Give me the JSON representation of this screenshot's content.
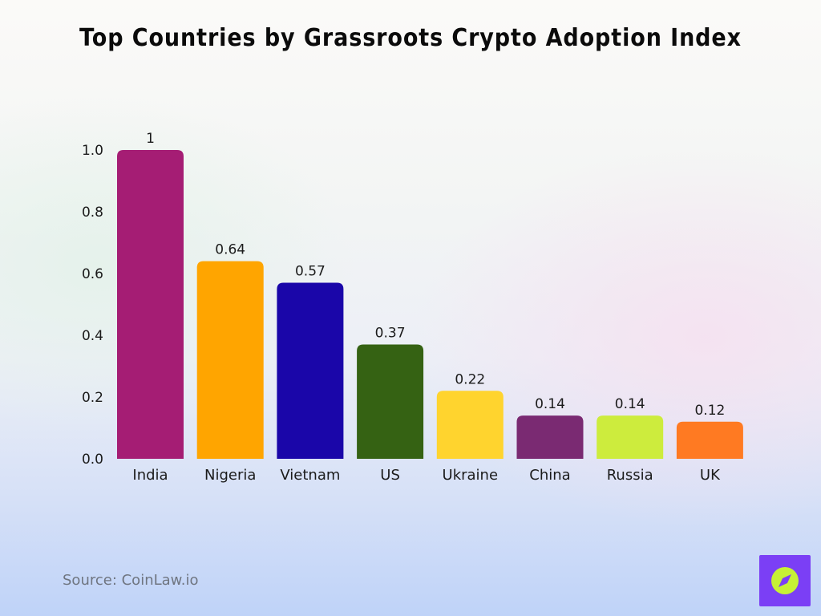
{
  "title": "Top Countries by Grassroots Crypto Adoption Index",
  "source": "Source: CoinLaw.io",
  "logo": {
    "icon": "compass-icon",
    "background": "#7b3ff5",
    "accent": "#c6f135"
  },
  "chart_data": {
    "type": "bar",
    "title": "Top Countries by Grassroots Crypto Adoption Index",
    "xlabel": "",
    "ylabel": "",
    "ylim": [
      0,
      1.0
    ],
    "yticks": [
      "0.0",
      "0.2",
      "0.4",
      "0.6",
      "0.8",
      "1.0"
    ],
    "grid": false,
    "categories": [
      "India",
      "Nigeria",
      "Vietnam",
      "US",
      "Ukraine",
      "China",
      "Russia",
      "UK"
    ],
    "values": [
      1,
      0.64,
      0.57,
      0.37,
      0.22,
      0.14,
      0.14,
      0.12
    ],
    "value_labels": [
      "1",
      "0.64",
      "0.57",
      "0.37",
      "0.22",
      "0.14",
      "0.14",
      "0.12"
    ],
    "colors": [
      "#a51d74",
      "#ffa500",
      "#1a06a9",
      "#356213",
      "#ffd42e",
      "#7a2a72",
      "#cdec3d",
      "#ff7a22"
    ]
  }
}
